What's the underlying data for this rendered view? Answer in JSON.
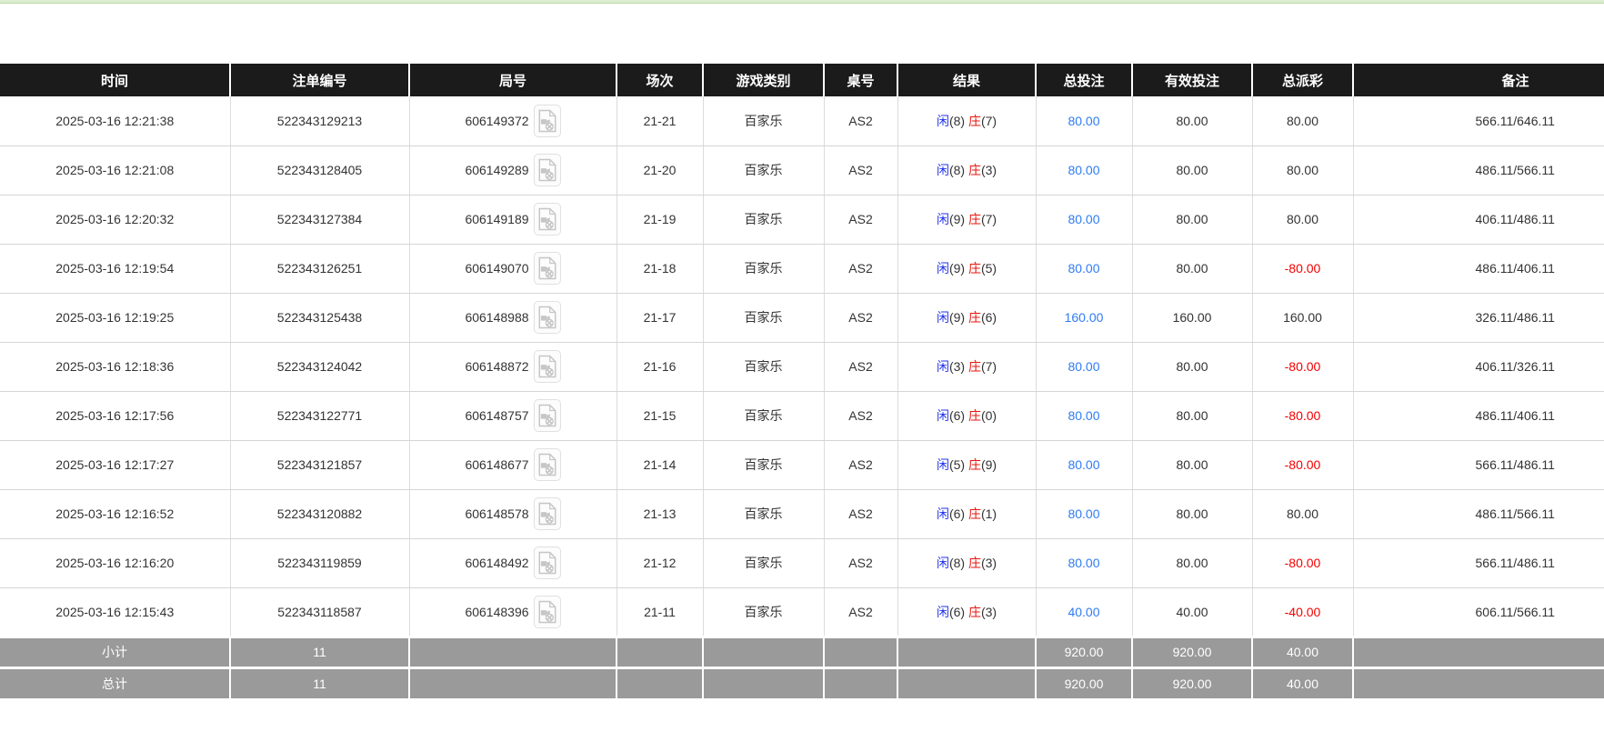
{
  "page": {
    "top_strip_color": "#dcedd2"
  },
  "colors": {
    "header_bg": "#1b1b1b",
    "footer_bg": "#9a9a9a",
    "player_blue": "#2233ee",
    "banker_red": "#e8150d",
    "amount_blue": "#2e7cf5",
    "loss_red": "#f50000",
    "text_dark": "#333333"
  },
  "icons": {
    "video_replay": "video-replay-icon"
  },
  "table": {
    "columns": [
      {
        "label": "时间"
      },
      {
        "label": "注单编号"
      },
      {
        "label": "局号"
      },
      {
        "label": "场次"
      },
      {
        "label": "游戏类别"
      },
      {
        "label": "桌号"
      },
      {
        "label": "结果"
      },
      {
        "label": "总投注"
      },
      {
        "label": "有效投注"
      },
      {
        "label": "总派彩"
      },
      {
        "label": "备注"
      }
    ],
    "result_labels": {
      "player": "闲",
      "banker": "庄"
    },
    "rows": [
      {
        "time": "2025-03-16 12:21:38",
        "bet_no": "522343129213",
        "round_no": "606149372",
        "session": "21-21",
        "game": "百家乐",
        "table_no": "AS2",
        "player": "8",
        "banker": "7",
        "total_bet": "80.00",
        "valid_bet": "80.00",
        "payout": "80.00",
        "payout_negative": false,
        "remark": "566.11/646.11"
      },
      {
        "time": "2025-03-16 12:21:08",
        "bet_no": "522343128405",
        "round_no": "606149289",
        "session": "21-20",
        "game": "百家乐",
        "table_no": "AS2",
        "player": "8",
        "banker": "3",
        "total_bet": "80.00",
        "valid_bet": "80.00",
        "payout": "80.00",
        "payout_negative": false,
        "remark": "486.11/566.11"
      },
      {
        "time": "2025-03-16 12:20:32",
        "bet_no": "522343127384",
        "round_no": "606149189",
        "session": "21-19",
        "game": "百家乐",
        "table_no": "AS2",
        "player": "9",
        "banker": "7",
        "total_bet": "80.00",
        "valid_bet": "80.00",
        "payout": "80.00",
        "payout_negative": false,
        "remark": "406.11/486.11"
      },
      {
        "time": "2025-03-16 12:19:54",
        "bet_no": "522343126251",
        "round_no": "606149070",
        "session": "21-18",
        "game": "百家乐",
        "table_no": "AS2",
        "player": "9",
        "banker": "5",
        "total_bet": "80.00",
        "valid_bet": "80.00",
        "payout": "-80.00",
        "payout_negative": true,
        "remark": "486.11/406.11"
      },
      {
        "time": "2025-03-16 12:19:25",
        "bet_no": "522343125438",
        "round_no": "606148988",
        "session": "21-17",
        "game": "百家乐",
        "table_no": "AS2",
        "player": "9",
        "banker": "6",
        "total_bet": "160.00",
        "valid_bet": "160.00",
        "payout": "160.00",
        "payout_negative": false,
        "remark": "326.11/486.11"
      },
      {
        "time": "2025-03-16 12:18:36",
        "bet_no": "522343124042",
        "round_no": "606148872",
        "session": "21-16",
        "game": "百家乐",
        "table_no": "AS2",
        "player": "3",
        "banker": "7",
        "total_bet": "80.00",
        "valid_bet": "80.00",
        "payout": "-80.00",
        "payout_negative": true,
        "remark": "406.11/326.11"
      },
      {
        "time": "2025-03-16 12:17:56",
        "bet_no": "522343122771",
        "round_no": "606148757",
        "session": "21-15",
        "game": "百家乐",
        "table_no": "AS2",
        "player": "6",
        "banker": "0",
        "total_bet": "80.00",
        "valid_bet": "80.00",
        "payout": "-80.00",
        "payout_negative": true,
        "remark": "486.11/406.11"
      },
      {
        "time": "2025-03-16 12:17:27",
        "bet_no": "522343121857",
        "round_no": "606148677",
        "session": "21-14",
        "game": "百家乐",
        "table_no": "AS2",
        "player": "5",
        "banker": "9",
        "total_bet": "80.00",
        "valid_bet": "80.00",
        "payout": "-80.00",
        "payout_negative": true,
        "remark": "566.11/486.11"
      },
      {
        "time": "2025-03-16 12:16:52",
        "bet_no": "522343120882",
        "round_no": "606148578",
        "session": "21-13",
        "game": "百家乐",
        "table_no": "AS2",
        "player": "6",
        "banker": "1",
        "total_bet": "80.00",
        "valid_bet": "80.00",
        "payout": "80.00",
        "payout_negative": false,
        "remark": "486.11/566.11"
      },
      {
        "time": "2025-03-16 12:16:20",
        "bet_no": "522343119859",
        "round_no": "606148492",
        "session": "21-12",
        "game": "百家乐",
        "table_no": "AS2",
        "player": "8",
        "banker": "3",
        "total_bet": "80.00",
        "valid_bet": "80.00",
        "payout": "-80.00",
        "payout_negative": true,
        "remark": "566.11/486.11"
      },
      {
        "time": "2025-03-16 12:15:43",
        "bet_no": "522343118587",
        "round_no": "606148396",
        "session": "21-11",
        "game": "百家乐",
        "table_no": "AS2",
        "player": "6",
        "banker": "3",
        "total_bet": "40.00",
        "valid_bet": "40.00",
        "payout": "-40.00",
        "payout_negative": true,
        "remark": "606.11/566.11"
      }
    ]
  },
  "footer": {
    "subtotal": {
      "label": "小计",
      "count": "11",
      "total_bet": "920.00",
      "valid_bet": "920.00",
      "payout": "40.00"
    },
    "grand_total": {
      "label": "总计",
      "count": "11",
      "total_bet": "920.00",
      "valid_bet": "920.00",
      "payout": "40.00"
    }
  }
}
